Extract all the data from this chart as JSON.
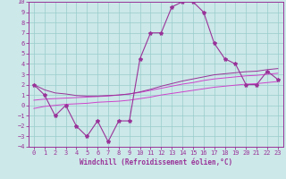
{
  "xlabel": "Windchill (Refroidissement éolien,°C)",
  "x": [
    0,
    1,
    2,
    3,
    4,
    5,
    6,
    7,
    8,
    9,
    10,
    11,
    12,
    13,
    14,
    15,
    16,
    17,
    18,
    19,
    20,
    21,
    22,
    23
  ],
  "y_main": [
    2,
    1,
    -1,
    0,
    -2,
    -3,
    -1.5,
    -3.5,
    -1.5,
    -1.5,
    4.5,
    7,
    7,
    9.5,
    10,
    10,
    9,
    6,
    4.5,
    4,
    2,
    2,
    3.3,
    2.5
  ],
  "y_reg_low": [
    -0.3,
    -0.1,
    0.0,
    0.1,
    0.15,
    0.2,
    0.3,
    0.35,
    0.4,
    0.5,
    0.65,
    0.8,
    1.0,
    1.15,
    1.3,
    1.45,
    1.6,
    1.75,
    1.85,
    1.95,
    2.05,
    2.1,
    2.2,
    2.3
  ],
  "y_reg_mid": [
    0.5,
    0.6,
    0.65,
    0.7,
    0.75,
    0.8,
    0.85,
    0.9,
    1.0,
    1.1,
    1.25,
    1.45,
    1.65,
    1.85,
    2.05,
    2.2,
    2.4,
    2.55,
    2.65,
    2.75,
    2.85,
    2.9,
    3.0,
    3.1
  ],
  "y_reg_high": [
    2.0,
    1.5,
    1.2,
    1.1,
    0.95,
    0.9,
    0.9,
    0.95,
    1.0,
    1.1,
    1.3,
    1.55,
    1.85,
    2.1,
    2.35,
    2.55,
    2.75,
    2.95,
    3.05,
    3.15,
    3.25,
    3.3,
    3.45,
    3.55
  ],
  "color_main": "#993399",
  "color_reg1": "#cc44cc",
  "color_reg2": "#993399",
  "bg_color": "#cce8e8",
  "grid_color": "#99cccc",
  "ylim": [
    -4,
    10
  ],
  "xlim": [
    -0.5,
    23.5
  ],
  "yticks": [
    -4,
    -3,
    -2,
    -1,
    0,
    1,
    2,
    3,
    4,
    5,
    6,
    7,
    8,
    9,
    10
  ],
  "xticks": [
    0,
    1,
    2,
    3,
    4,
    5,
    6,
    7,
    8,
    9,
    10,
    11,
    12,
    13,
    14,
    15,
    16,
    17,
    18,
    19,
    20,
    21,
    22,
    23
  ],
  "tick_fontsize": 5,
  "xlabel_fontsize": 5.5
}
